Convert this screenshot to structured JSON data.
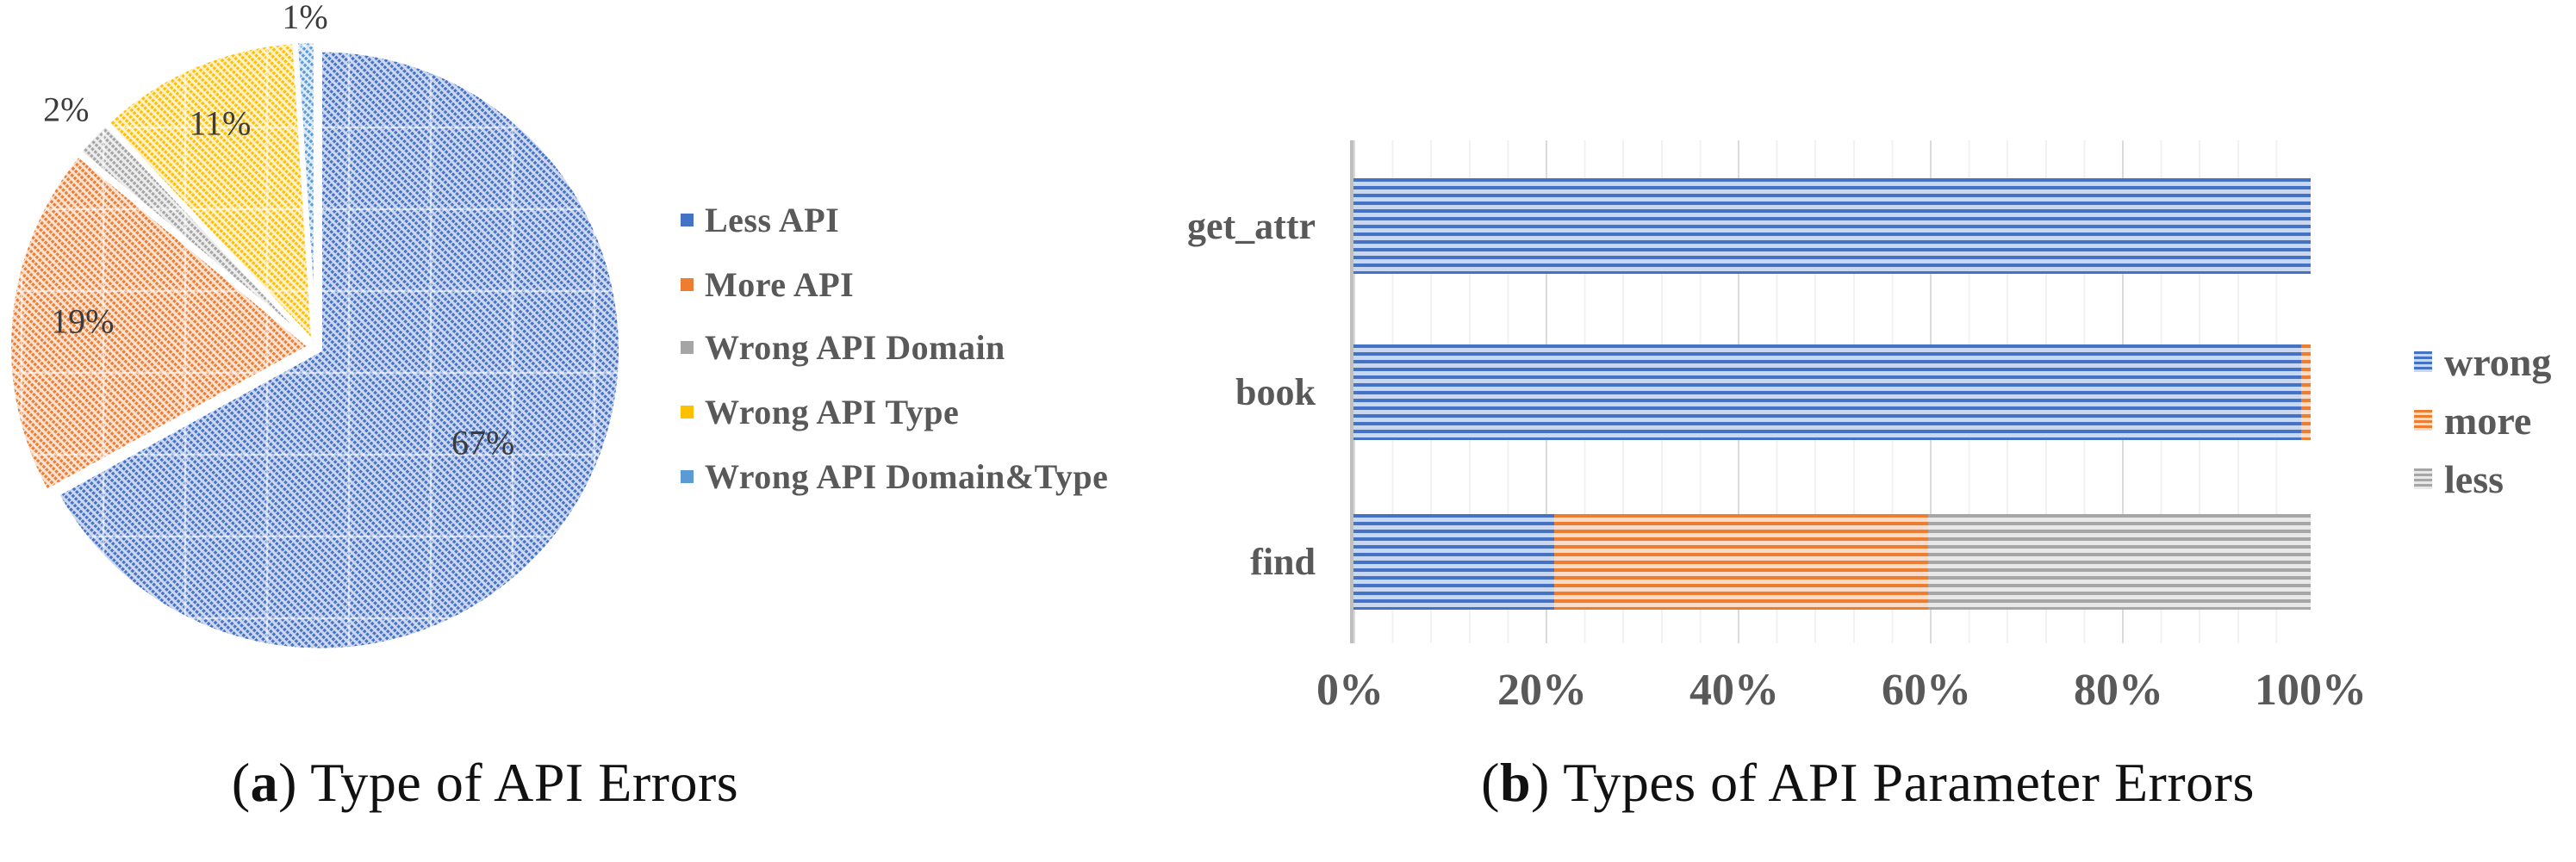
{
  "captions": {
    "paren_open": "(",
    "paren_close": ")",
    "a": {
      "letter": "a",
      "text": " Type of API Errors"
    },
    "b": {
      "letter": "b",
      "text": " Types of API Parameter Errors"
    }
  },
  "colors": {
    "axis_gray": "#BFBFBF",
    "label_gray": "#595959",
    "pie_label": "#3C3C3C",
    "grid_minor": "#F1F1F1",
    "grid_major": "#DBDBDB"
  },
  "chart_data": [
    {
      "type": "pie",
      "title": "Type of API Errors",
      "start_angle": 0,
      "clockwise": true,
      "legend_position": "right",
      "slices": [
        {
          "label": "Less API",
          "value": 67,
          "display": "67%",
          "color": "#4472C4",
          "tint": "#CDD8F0",
          "label_r": 0.65
        },
        {
          "label": "More API",
          "value": 19,
          "display": "19%",
          "color": "#ED7D31",
          "tint": "#FBE3D4",
          "label_r": 0.78
        },
        {
          "label": "Wrong API Domain",
          "value": 2,
          "display": "2%",
          "color": "#A5A5A5",
          "tint": "#EDEDED",
          "label_r": 1.14
        },
        {
          "label": "Wrong API Type",
          "value": 11,
          "display": "11%",
          "color": "#FFC000",
          "tint": "#FFF1CB",
          "label_r": 0.8
        },
        {
          "label": "Wrong API Domain&Type",
          "value": 1,
          "display": "1%",
          "color": "#5B9BD5",
          "tint": "#DDEBF7",
          "label_r": 1.09
        }
      ]
    },
    {
      "type": "bar",
      "orientation": "horizontal-stacked",
      "title": "Types of API Parameter Errors",
      "categories": [
        "get_attr",
        "book",
        "find"
      ],
      "series": [
        {
          "name": "wrong",
          "color": "#4472C4",
          "tint": "#C9D7F0",
          "values": [
            100,
            99,
            21
          ]
        },
        {
          "name": "more",
          "color": "#ED7D31",
          "tint": "#FADCC8",
          "values": [
            0,
            1,
            39
          ]
        },
        {
          "name": "less",
          "color": "#A6A6A6",
          "tint": "#E8E8E8",
          "values": [
            0,
            0,
            40
          ]
        }
      ],
      "x_ticks": [
        "0%",
        "20%",
        "40%",
        "60%",
        "80%",
        "100%"
      ],
      "xlim": [
        0,
        100
      ],
      "major_unit": 20,
      "minor_unit": 4,
      "grid": true,
      "legend_position": "right"
    }
  ]
}
